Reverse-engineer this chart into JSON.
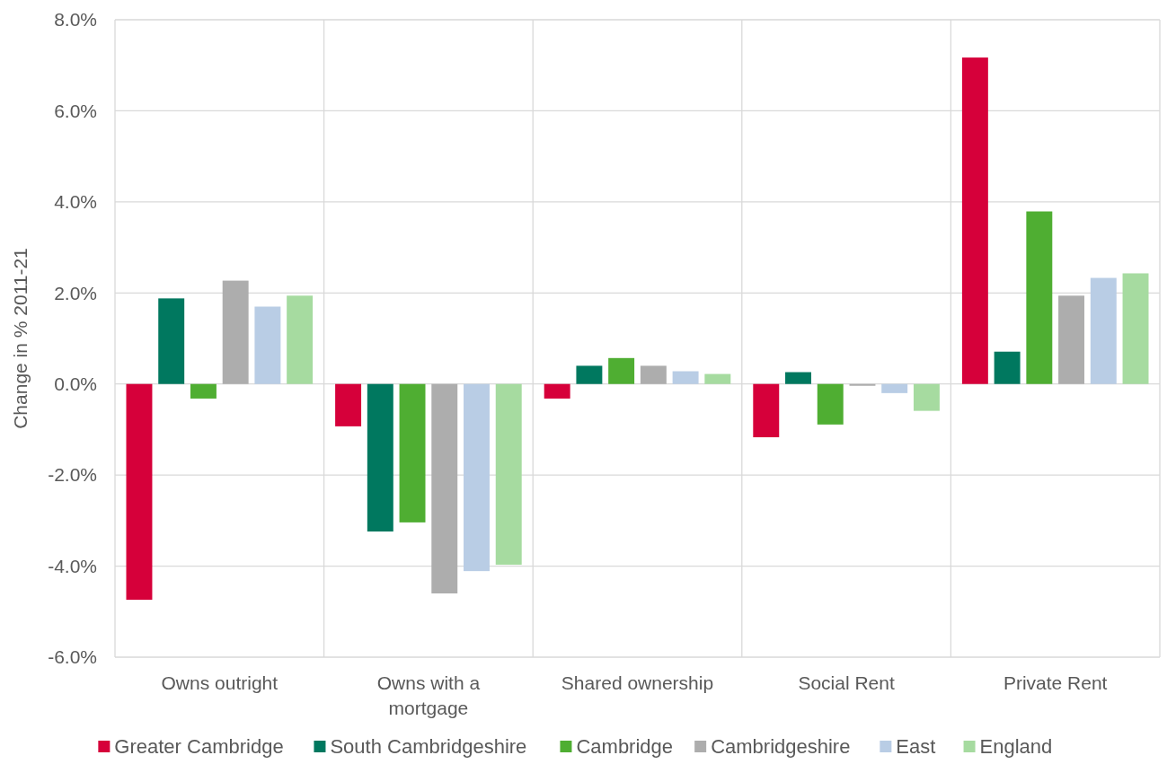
{
  "chart_data": {
    "type": "bar",
    "ylabel": "Change in % 2011-21",
    "categories": [
      "Owns outright",
      "Owns with a mortgage",
      "Shared ownership",
      "Social Rent",
      "Private Rent"
    ],
    "series": [
      {
        "name": "Greater Cambridge",
        "color": "#d6003a",
        "values": [
          -4.74,
          -0.93,
          -0.32,
          -1.17,
          7.17
        ]
      },
      {
        "name": "South Cambridgeshire",
        "color": "#00785f",
        "values": [
          1.88,
          -3.24,
          0.4,
          0.26,
          0.71
        ]
      },
      {
        "name": "Cambridge",
        "color": "#4fae32",
        "values": [
          -0.32,
          -3.04,
          0.57,
          -0.89,
          3.79
        ]
      },
      {
        "name": "Cambridgeshire",
        "color": "#adadad",
        "values": [
          2.27,
          -4.6,
          0.4,
          -0.04,
          1.94
        ]
      },
      {
        "name": "East",
        "color": "#b9cde5",
        "values": [
          1.7,
          -4.11,
          0.28,
          -0.2,
          2.33
        ]
      },
      {
        "name": "England",
        "color": "#a6dba0",
        "values": [
          1.94,
          -3.97,
          0.22,
          -0.59,
          2.43
        ]
      }
    ],
    "ylim": [
      -6,
      8
    ],
    "yticks": [
      {
        "value": -6,
        "label": "-6.0%"
      },
      {
        "value": -4,
        "label": "-4.0%"
      },
      {
        "value": -2,
        "label": "-2.0%"
      },
      {
        "value": 0,
        "label": "0.0%"
      },
      {
        "value": 2,
        "label": "2.0%"
      },
      {
        "value": 4,
        "label": "4.0%"
      },
      {
        "value": 6,
        "label": "6.0%"
      },
      {
        "value": 8,
        "label": "8.0%"
      }
    ],
    "grid": true,
    "legend": "bottom"
  }
}
